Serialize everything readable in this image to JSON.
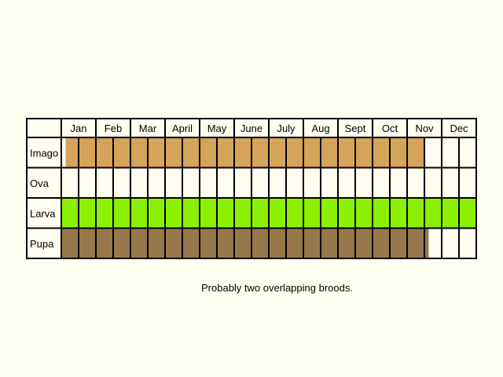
{
  "colors": {
    "background": "#fffff0",
    "cell_empty": "#fffef0",
    "grid": "#000000"
  },
  "chart_data": {
    "type": "table",
    "months": [
      "Jan",
      "Feb",
      "Mar",
      "April",
      "May",
      "June",
      "July",
      "Aug",
      "Sept",
      "Oct",
      "Nov",
      "Dec"
    ],
    "columns_per_month": 2,
    "stages": [
      {
        "name": "Imago",
        "color": "#d6a35a",
        "present_from_column": 0.25,
        "present_to_column": 21
      },
      {
        "name": "Ova",
        "color": "#fffef0",
        "present_from_column": 0,
        "present_to_column": 0
      },
      {
        "name": "Larva",
        "color": "#8cf000",
        "present_from_column": 0,
        "present_to_column": 24
      },
      {
        "name": "Pupa",
        "color": "#96784b",
        "present_from_column": 0,
        "present_to_column": 21.25
      }
    ]
  },
  "note": "Probably two overlapping broods."
}
